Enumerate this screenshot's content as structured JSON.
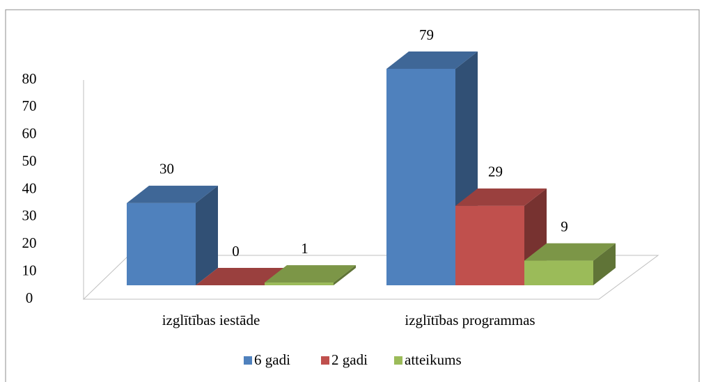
{
  "chart_data": {
    "type": "bar3d",
    "categories": [
      "izglītības iestāde",
      "izglītības programmas"
    ],
    "series": [
      {
        "name": "6 gadi",
        "color": "#4f81bd",
        "values": [
          30,
          79
        ]
      },
      {
        "name": "2 gadi",
        "color": "#c0504d",
        "values": [
          0,
          29
        ]
      },
      {
        "name": "atteikums",
        "color": "#9bbb59",
        "values": [
          1,
          9
        ]
      }
    ],
    "ylim": [
      0,
      80
    ],
    "yticks": [
      0,
      10,
      20,
      30,
      40,
      50,
      60,
      70,
      80
    ],
    "legend": "bottom"
  }
}
